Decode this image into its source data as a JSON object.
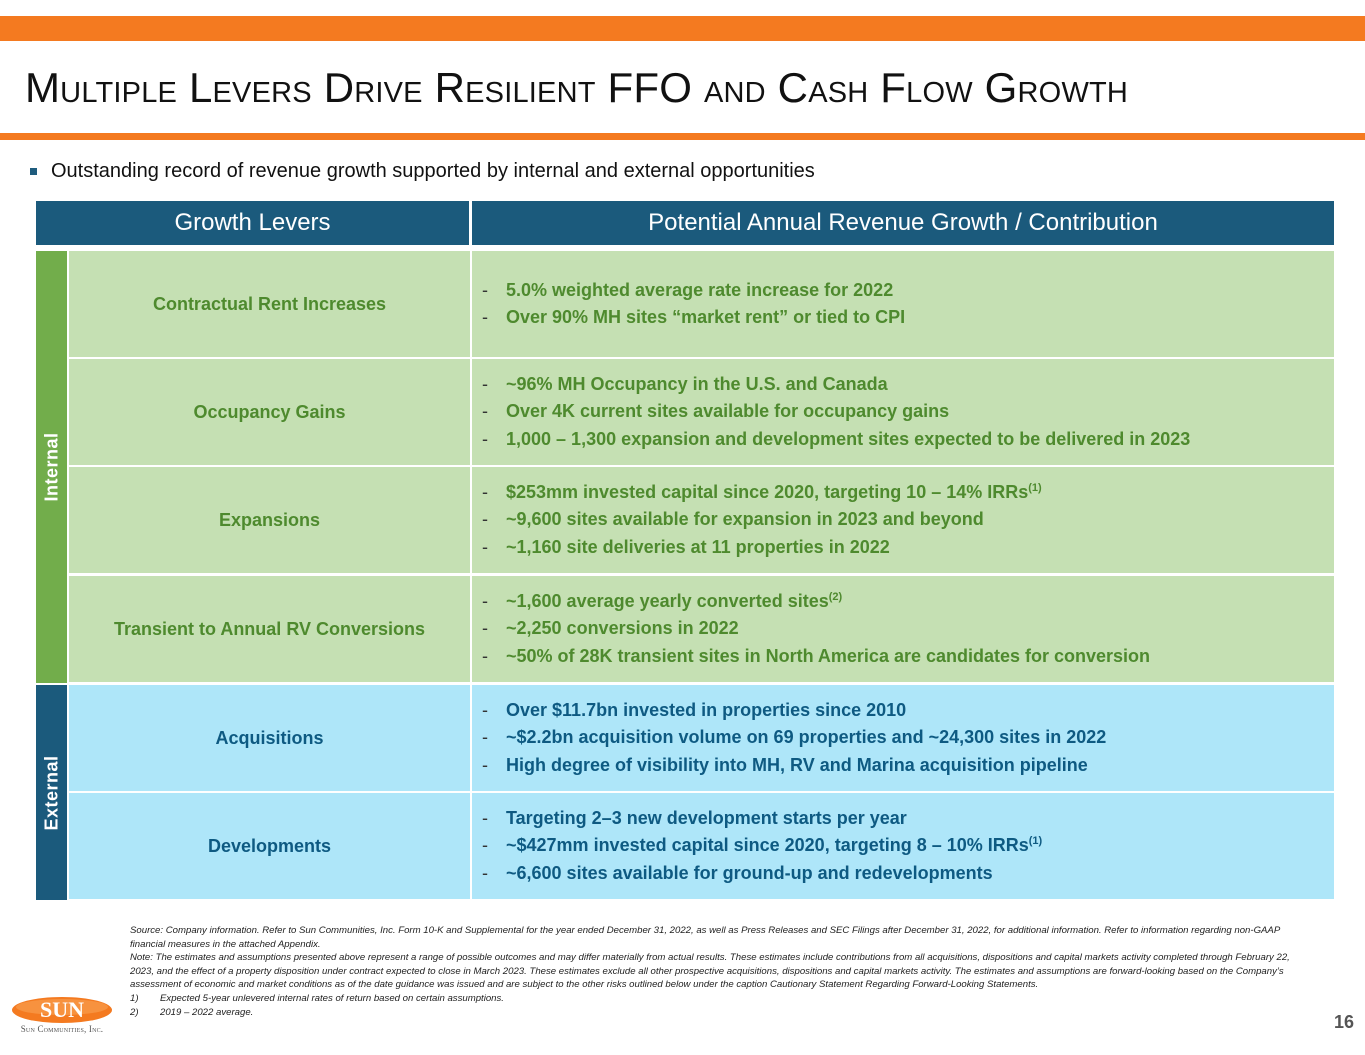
{
  "slide": {
    "title": "Multiple Levers Drive Resilient FFO and Cash Flow Growth",
    "bullet": "Outstanding record of revenue growth supported by internal and external opportunities",
    "page_number": "16"
  },
  "table": {
    "headers": [
      "Growth Levers",
      "Potential Annual Revenue Growth / Contribution"
    ],
    "groups": {
      "internal": "Internal",
      "external": "External"
    },
    "rows": [
      {
        "lever": "Contractual Rent Increases",
        "details": [
          {
            "text": "5.0% weighted average rate increase for 2022",
            "sup": ""
          },
          {
            "text": "Over 90% MH sites “market rent” or tied to CPI",
            "sup": ""
          }
        ]
      },
      {
        "lever": "Occupancy Gains",
        "details": [
          {
            "text": "~96% MH Occupancy in the U.S. and Canada",
            "sup": ""
          },
          {
            "text": "Over 4K current sites available for occupancy gains",
            "sup": ""
          },
          {
            "text": "1,000 – 1,300 expansion and development sites expected to be delivered in 2023",
            "sup": ""
          }
        ]
      },
      {
        "lever": "Expansions",
        "details": [
          {
            "text": "$253mm invested capital since 2020, targeting 10 – 14% IRRs",
            "sup": "(1)"
          },
          {
            "text": "~9,600 sites available for expansion in 2023 and beyond",
            "sup": ""
          },
          {
            "text": "~1,160 site deliveries at 11 properties in 2022",
            "sup": ""
          }
        ]
      },
      {
        "lever": "Transient to Annual RV Conversions",
        "details": [
          {
            "text": "~1,600 average yearly converted sites",
            "sup": "(2)"
          },
          {
            "text": "~2,250 conversions in 2022",
            "sup": ""
          },
          {
            "text": "~50% of 28K transient sites in North America are candidates for conversion",
            "sup": ""
          }
        ]
      },
      {
        "lever": "Acquisitions",
        "details": [
          {
            "text": "Over $11.7bn invested in properties since 2010",
            "sup": ""
          },
          {
            "text": "~$2.2bn acquisition volume on 69 properties and ~24,300 sites in 2022",
            "sup": ""
          },
          {
            "text": "High degree of visibility into MH, RV and Marina acquisition pipeline",
            "sup": ""
          }
        ]
      },
      {
        "lever": "Developments",
        "details": [
          {
            "text": "Targeting 2–3 new development starts per year",
            "sup": ""
          },
          {
            "text": "~$427mm invested capital since 2020, targeting 8 – 10% IRRs",
            "sup": "(1)"
          },
          {
            "text": "~6,600 sites available for ground-up and redevelopments",
            "sup": ""
          }
        ]
      }
    ]
  },
  "footnotes": {
    "source": "Source: Company information. Refer to Sun Communities, Inc. Form 10-K and Supplemental for the year ended December 31, 2022, as well as Press Releases and SEC Filings after December 31, 2022, for additional information. Refer to information regarding non-GAAP financial measures in the attached Appendix.",
    "note": "Note: The estimates and assumptions presented above represent a range of possible outcomes and may differ materially from actual results. These estimates include contributions from all acquisitions, dispositions and capital markets activity completed through February 22, 2023, and the effect of a property disposition under contract expected to close in March 2023. These estimates exclude all other prospective acquisitions, dispositions and capital markets activity. The estimates and assumptions are forward-looking based on the Company’s assessment of economic and market conditions as of the date guidance was issued and are subject to the other risks outlined below under the caption Cautionary Statement Regarding Forward-Looking Statements.",
    "items": [
      {
        "num": "1)",
        "text": "Expected 5-year unlevered internal rates of return based on certain assumptions."
      },
      {
        "num": "2)",
        "text": "2019 – 2022 average."
      }
    ]
  },
  "logo": {
    "mark": "SUN",
    "name": "Sun Communities, Inc."
  },
  "colors": {
    "accent_orange": "#F47A20",
    "header_blue": "#1B5A7C",
    "internal_bar": "#72AD4B",
    "internal_fill": "#C5E0B3",
    "internal_text": "#4E8A2E",
    "external_fill": "#AEE6F9",
    "external_text": "#0E5A82"
  }
}
